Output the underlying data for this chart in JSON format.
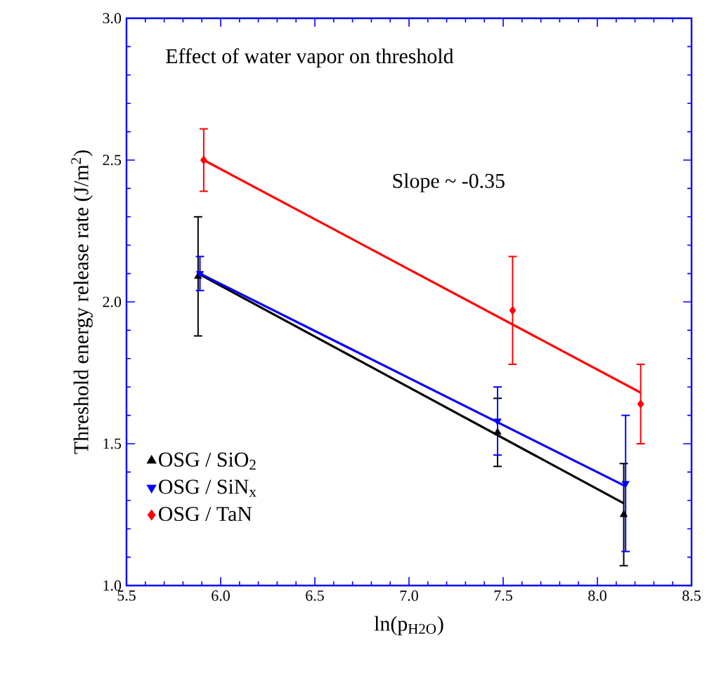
{
  "chart_data": {
    "type": "scatter",
    "xlabel": "ln(p$_{H2O}$)",
    "ylabel": "Threshold energy release rate (J/m$^{2}$)",
    "annotations": [
      "Effect of water vapor on threshold",
      "Slope ~ -0.35"
    ],
    "xlim": [
      5.5,
      8.5
    ],
    "xticks": [
      5.5,
      {
        "value": 6,
        "label": "6.0"
      },
      6.5,
      {
        "value": 7,
        "label": "7.0"
      },
      7.5,
      {
        "value": 8,
        "label": "8.0"
      },
      8.5
    ],
    "ylim": [
      1.0,
      3.0
    ],
    "yticks": [
      {
        "value": 1,
        "label": "1.0"
      },
      1.5,
      {
        "value": 2,
        "label": "2.0"
      },
      2.5,
      {
        "value": 3,
        "label": "3.0"
      }
    ],
    "grid": false,
    "legend": "bottom left",
    "series": [
      {
        "name": "OSG / SiO$_{2}$",
        "color": "#000000",
        "marker": "triangle",
        "x": [
          5.88,
          7.47,
          8.14
        ],
        "values": [
          2.09,
          1.54,
          1.25
        ],
        "errors": [
          0.21,
          0.12,
          0.18
        ]
      },
      {
        "name": "OSG / SiN$_{x}$",
        "color": "#0000ff",
        "marker": "triangle-down",
        "x": [
          5.89,
          7.47,
          8.15
        ],
        "values": [
          2.1,
          1.58,
          1.36
        ],
        "errors": [
          0.06,
          0.12,
          0.24
        ]
      },
      {
        "name": "OSG / TaN",
        "color": "#ff0000",
        "marker": "diamond",
        "x": [
          5.91,
          7.55,
          8.23
        ],
        "values": [
          2.5,
          1.97,
          1.64
        ],
        "errors": [
          0.11,
          0.19,
          0.14
        ]
      },
      {
        "type": "line",
        "color": "#000000",
        "x": [
          5.88,
          8.14
        ],
        "values": [
          2.1,
          1.29
        ]
      },
      {
        "type": "line",
        "color": "#0000ff",
        "x": [
          5.89,
          8.15
        ],
        "values": [
          2.1,
          1.35
        ]
      },
      {
        "type": "line",
        "color": "#ff0000",
        "x": [
          5.91,
          8.23
        ],
        "values": [
          2.5,
          1.68
        ]
      }
    ]
  }
}
